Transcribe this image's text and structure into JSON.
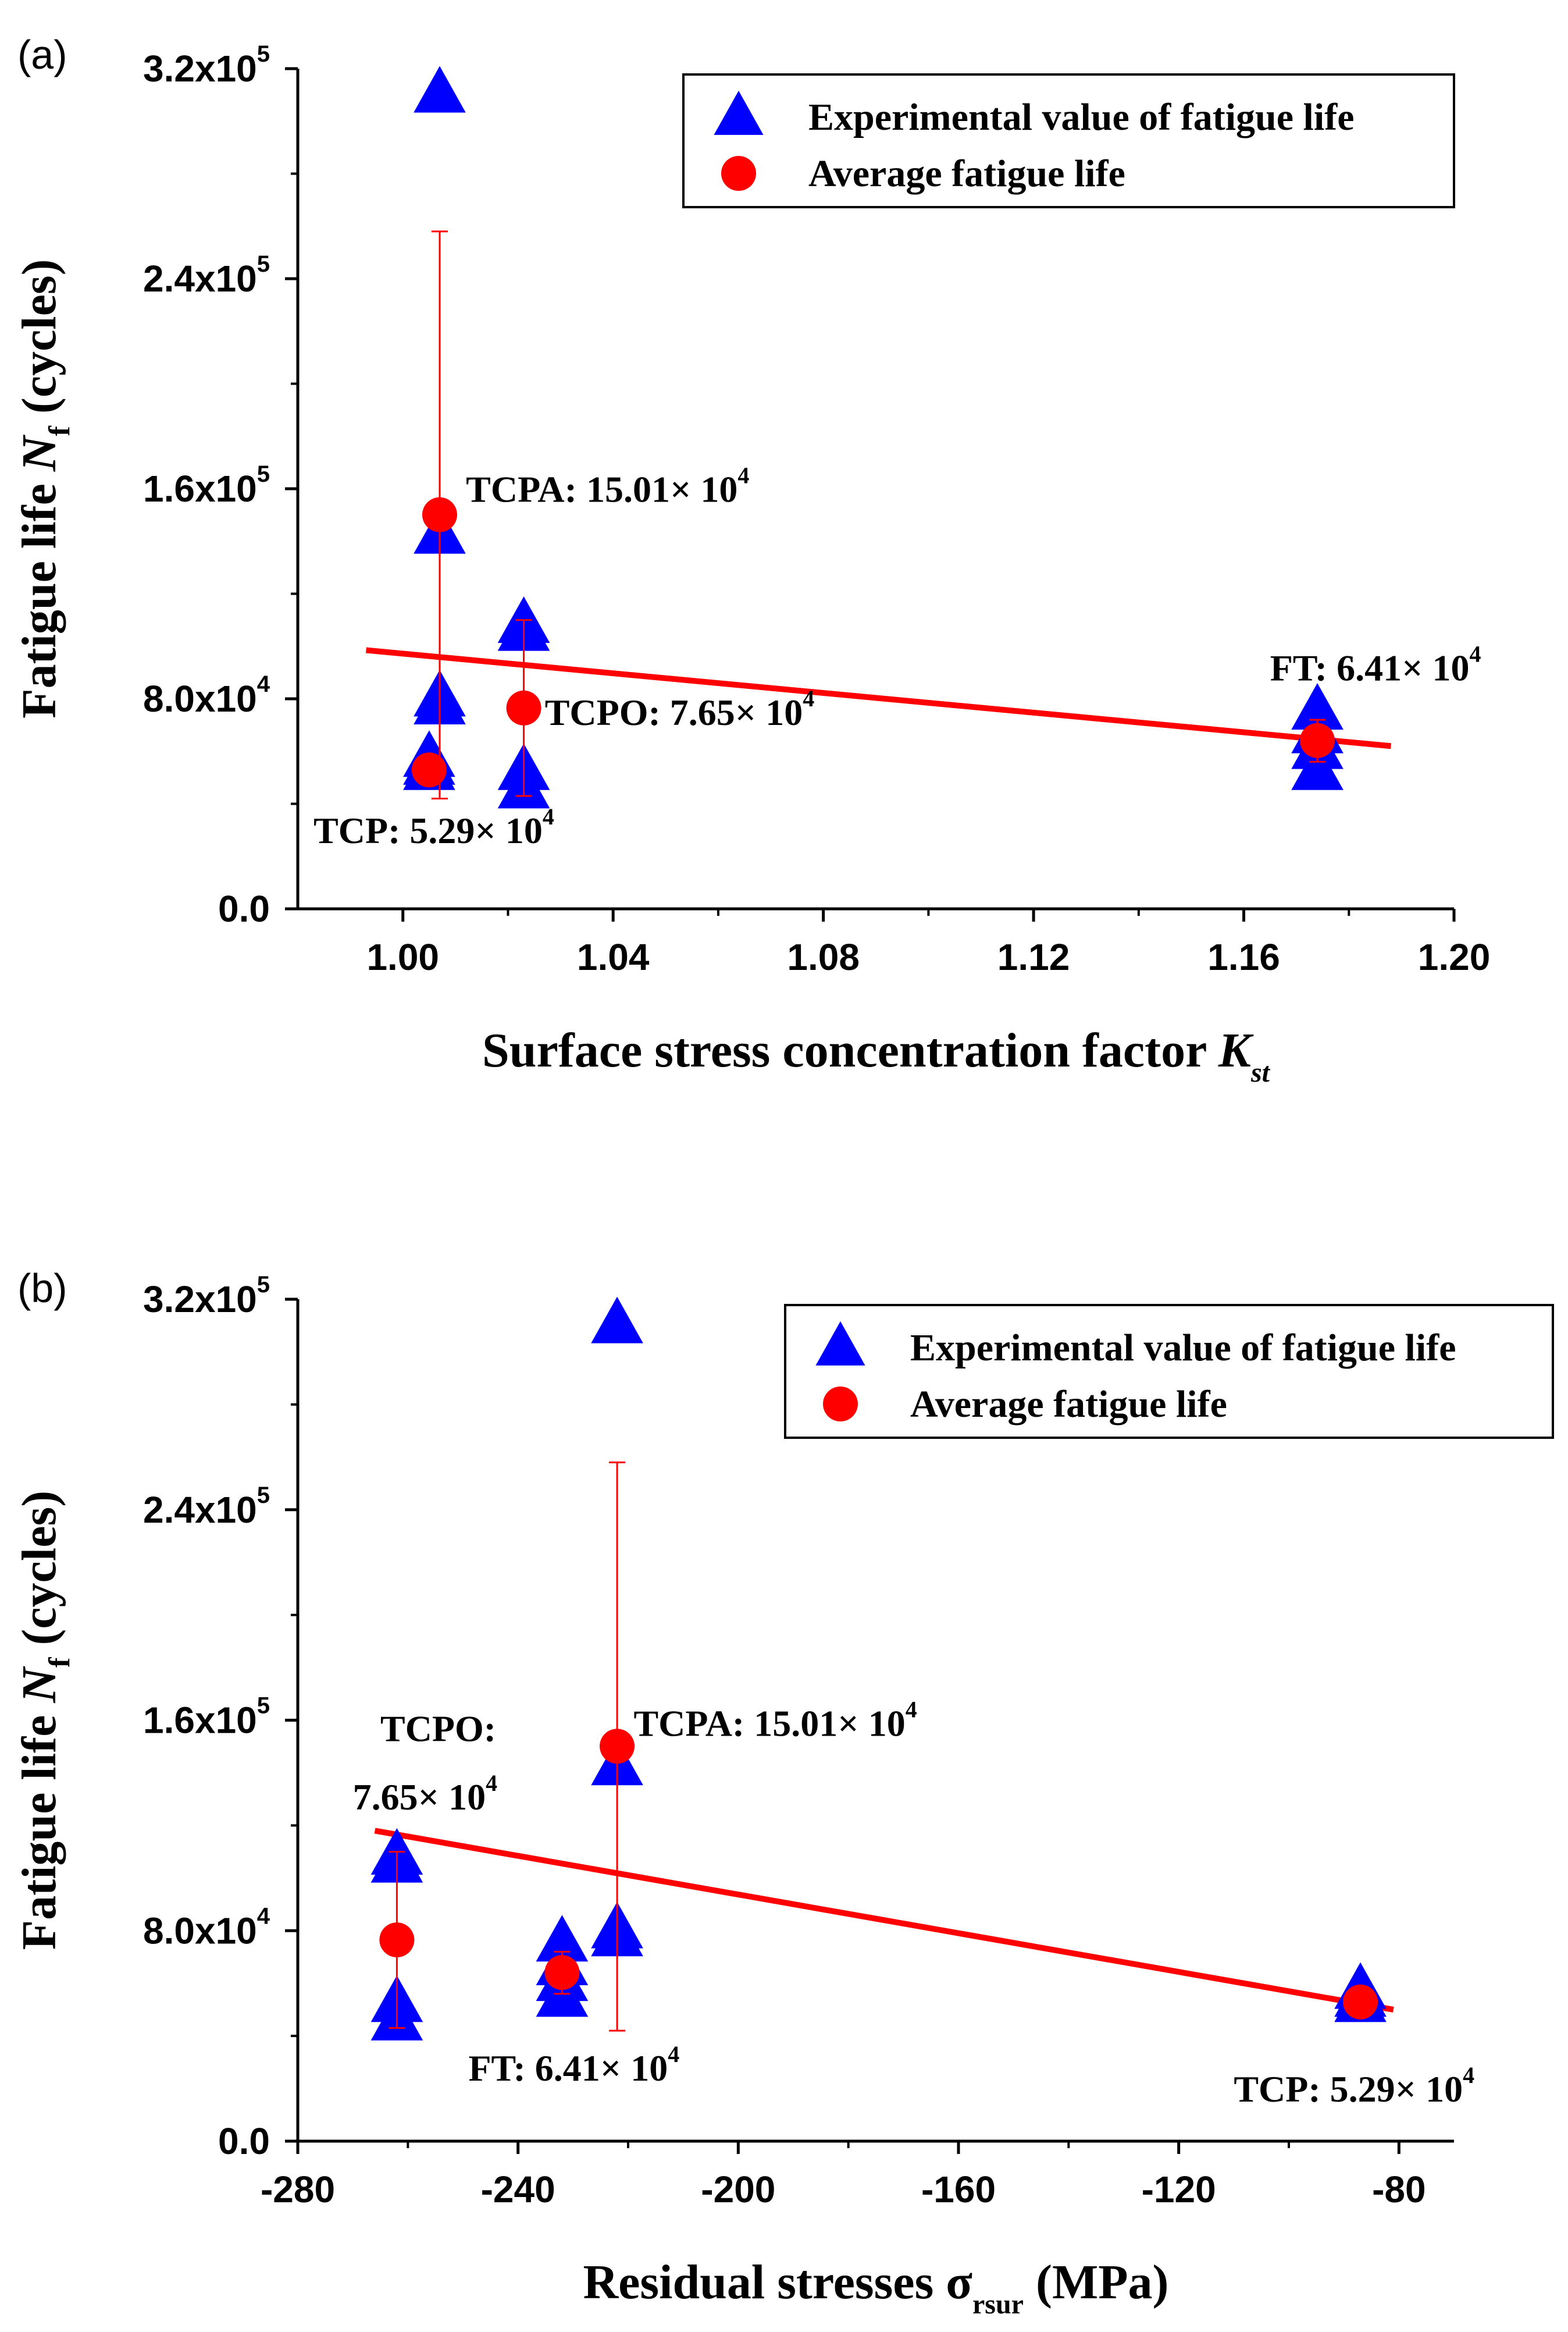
{
  "colors": {
    "triangle": "#0000FF",
    "average": "#FF0000",
    "trendline": "#FF0000",
    "axis": "#000000"
  },
  "legend": {
    "marker_triangle_icon": "blue-triangle",
    "marker_circle_icon": "red-circle",
    "experimental_label": "Experimental value of fatigue life",
    "average_label": "Average fatigue life"
  },
  "chart_data": [
    {
      "panel": "(a)",
      "type": "scatter",
      "title": "",
      "xlabel": {
        "main": "Surface stress concentration factor ",
        "symbol": "K",
        "subscript": "st"
      },
      "ylabel": {
        "main": "Fatigue life ",
        "symbol": "N",
        "subscript": "f",
        "unit": " (cycles)"
      },
      "xlim": [
        0.98,
        1.2
      ],
      "ylim": [
        0,
        320000
      ],
      "x_ticks": [
        1.0,
        1.04,
        1.08,
        1.12,
        1.16,
        1.2
      ],
      "x_tick_labels": [
        "1.00",
        "1.04",
        "1.08",
        "1.12",
        "1.16",
        "1.20"
      ],
      "y_ticks": [
        0,
        80000,
        160000,
        240000,
        320000
      ],
      "y_tick_labels": [
        {
          "base": "0.0",
          "exp": ""
        },
        {
          "base": "8.0x10",
          "exp": "4"
        },
        {
          "base": "1.6x10",
          "exp": "5"
        },
        {
          "base": "2.4x10",
          "exp": "5"
        },
        {
          "base": "3.2x10",
          "exp": "5"
        }
      ],
      "series": [
        {
          "name": "Experimental value of fatigue life",
          "marker": "triangle",
          "points": [
            [
              1.007,
              310000
            ],
            [
              1.007,
              142000
            ],
            [
              1.007,
              80000
            ],
            [
              1.007,
              77000
            ],
            [
              1.005,
              57000
            ],
            [
              1.005,
              54000
            ],
            [
              1.005,
              52000
            ],
            [
              1.023,
              108000
            ],
            [
              1.023,
              105000
            ],
            [
              1.023,
              52000
            ],
            [
              1.023,
              45000
            ],
            [
              1.174,
              75000
            ],
            [
              1.174,
              66000
            ],
            [
              1.174,
              60000
            ],
            [
              1.174,
              52000
            ]
          ]
        },
        {
          "name": "Average fatigue life",
          "marker": "circle",
          "points": [
            {
              "x": 1.007,
              "y": 150100,
              "err_low": 42000,
              "err_high": 258000
            },
            {
              "x": 1.005,
              "y": 52900,
              "err_low": 52900,
              "err_high": 52900
            },
            {
              "x": 1.023,
              "y": 76500,
              "err_low": 43000,
              "err_high": 110000
            },
            {
              "x": 1.174,
              "y": 64100,
              "err_low": 56000,
              "err_high": 72000
            }
          ]
        }
      ],
      "trendline": {
        "x": [
          0.993,
          1.188
        ],
        "y": [
          98500,
          62000
        ]
      },
      "annotations": [
        {
          "label": "TCPA: 15.01×  10",
          "exp": "4",
          "x": 1.012,
          "y": 155000,
          "anchor": "start"
        },
        {
          "label": "TCPO: 7.65×  10",
          "exp": "4",
          "x": 1.027,
          "y": 70000,
          "anchor": "start"
        },
        {
          "label": "TCP: 5.29×  10",
          "exp": "4",
          "x": 0.983,
          "y": 25000,
          "anchor": "start"
        },
        {
          "label": "FT: 6.41×  10",
          "exp": "4",
          "x": 1.165,
          "y": 87000,
          "anchor": "start"
        }
      ],
      "legend": {
        "position": "top-right"
      }
    },
    {
      "panel": "(b)",
      "type": "scatter",
      "title": "",
      "xlabel": {
        "main": "Residual stresses ",
        "symbol": "σ",
        "subscript": "rsur",
        "unit": " (MPa)"
      },
      "ylabel": {
        "main": "Fatigue life ",
        "symbol": "N",
        "subscript": "f",
        "unit": " (cycles)"
      },
      "xlim": [
        -280,
        -70
      ],
      "ylim": [
        0,
        320000
      ],
      "x_ticks": [
        -280,
        -240,
        -200,
        -160,
        -120,
        -80
      ],
      "x_tick_labels": [
        "-280",
        "-240",
        "-200",
        "-160",
        "-120",
        "-80"
      ],
      "y_ticks": [
        0,
        80000,
        160000,
        240000,
        320000
      ],
      "y_tick_labels": [
        {
          "base": "0.0",
          "exp": ""
        },
        {
          "base": "8.0x10",
          "exp": "4"
        },
        {
          "base": "1.6x10",
          "exp": "5"
        },
        {
          "base": "2.4x10",
          "exp": "5"
        },
        {
          "base": "3.2x10",
          "exp": "5"
        }
      ],
      "series": [
        {
          "name": "Experimental value of fatigue life",
          "marker": "triangle",
          "points": [
            [
              -222,
              310000
            ],
            [
              -222,
              142000
            ],
            [
              -222,
              80000
            ],
            [
              -222,
              77000
            ],
            [
              -262,
              108000
            ],
            [
              -262,
              105000
            ],
            [
              -262,
              52000
            ],
            [
              -262,
              45000
            ],
            [
              -232,
              75000
            ],
            [
              -232,
              66000
            ],
            [
              -232,
              60000
            ],
            [
              -232,
              54000
            ],
            [
              -87,
              57000
            ],
            [
              -87,
              54000
            ],
            [
              -87,
              52000
            ]
          ]
        },
        {
          "name": "Average fatigue life",
          "marker": "circle",
          "points": [
            {
              "x": -222,
              "y": 150100,
              "err_low": 42000,
              "err_high": 258000
            },
            {
              "x": -262,
              "y": 76500,
              "err_low": 43000,
              "err_high": 110000
            },
            {
              "x": -232,
              "y": 64100,
              "err_low": 56000,
              "err_high": 72000
            },
            {
              "x": -87,
              "y": 52900,
              "err_low": 52900,
              "err_high": 52900
            }
          ]
        }
      ],
      "trendline": {
        "x": [
          -266,
          -81
        ],
        "y": [
          118000,
          50000
        ]
      },
      "annotations": [
        {
          "label": "TCPA: 15.01×  10",
          "exp": "4",
          "x": -219,
          "y": 154000,
          "anchor": "start"
        },
        {
          "label": "TCPO:",
          "exp": "",
          "x": -265,
          "y": 152000,
          "anchor": "start"
        },
        {
          "label": "7.65×  10",
          "exp": "4",
          "x": -270,
          "y": 126000,
          "anchor": "start"
        },
        {
          "label": "FT: 6.41×  10",
          "exp": "4",
          "x": -249,
          "y": 23000,
          "anchor": "start"
        },
        {
          "label": "TCP: 5.29×  10",
          "exp": "4",
          "x": -110,
          "y": 15000,
          "anchor": "start"
        }
      ],
      "legend": {
        "position": "top-right"
      }
    }
  ]
}
